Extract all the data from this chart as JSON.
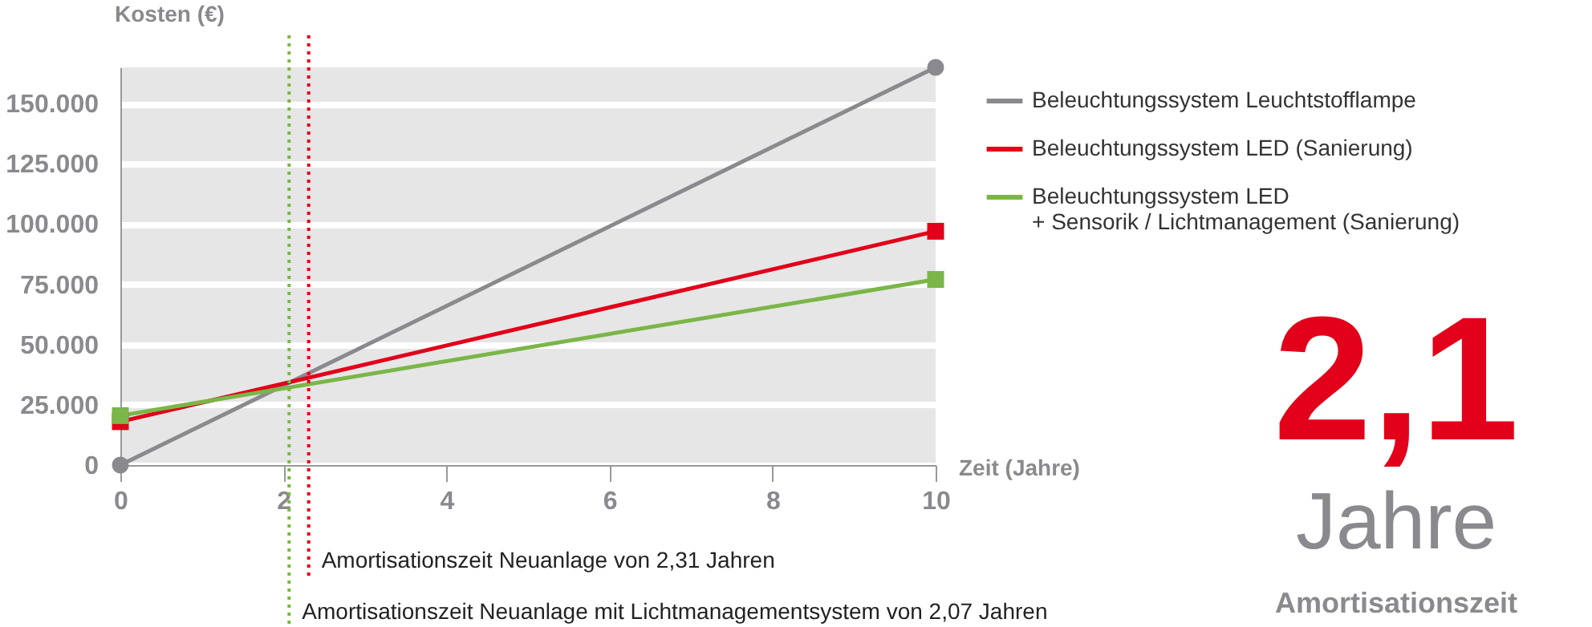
{
  "chart_data": {
    "type": "line",
    "ylabel": "Kosten (€)",
    "xlabel": "Zeit (Jahre)",
    "xlim": [
      0,
      10
    ],
    "xticks": [
      0,
      2,
      4,
      6,
      8,
      10
    ],
    "ylim": [
      0,
      165000
    ],
    "yticks": [
      0,
      {
        "value": 25000,
        "label": "25.000"
      },
      {
        "value": 50000,
        "label": "50.000"
      },
      {
        "value": 75000,
        "label": "75.000"
      },
      {
        "value": 100000,
        "label": "100.000"
      },
      {
        "value": 125000,
        "label": "125.000"
      },
      {
        "value": 150000,
        "label": "150.000"
      }
    ],
    "grid": "y",
    "legend": "right",
    "x": [
      0,
      10
    ],
    "series": [
      {
        "name": "Beleuchtungssystem Leuchtstofflampe",
        "color": "#8a8a8e",
        "marker": "circle",
        "values": [
          0,
          165000
        ]
      },
      {
        "name": "Beleuchtungssystem LED (Sanierung)",
        "color": "#e2001a",
        "marker": "square",
        "values": [
          18000,
          97000
        ]
      },
      {
        "name": "Beleuchtungssystem LED\n+ Sensorik / Lichtmanagement (Sanierung)",
        "color": "#7ab648",
        "marker": "square",
        "values": [
          20500,
          77000
        ]
      }
    ],
    "ref_lines": [
      {
        "axis": "x",
        "value": 2.31,
        "label": "Amortisationszeit Neuanlage von 2,31 Jahren",
        "color": "#e2001a",
        "line_style": "dotted"
      },
      {
        "axis": "x",
        "value": 2.07,
        "label": "Amortisationszeit Neuanlage mit Lichtmanagementsystem von 2,07 Jahren",
        "color": "#7ab648",
        "line_style": "dotted"
      }
    ],
    "annotations": [
      "2,1",
      "Jahre",
      "Amortisationszeit"
    ]
  }
}
